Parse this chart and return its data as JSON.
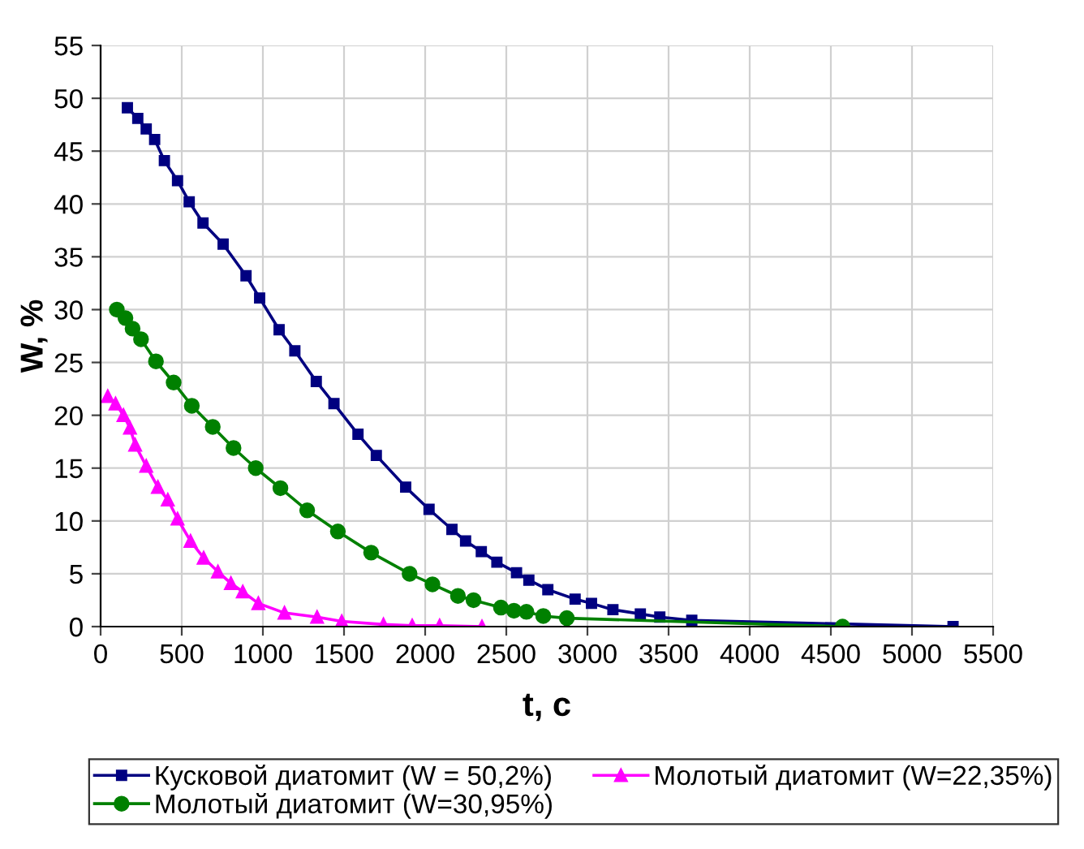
{
  "chart_data": {
    "type": "line",
    "xlabel": "t, c",
    "ylabel": "W, %",
    "xlim": [
      0,
      5500
    ],
    "ylim": [
      0,
      55
    ],
    "xticks": [
      0,
      500,
      1000,
      1500,
      2000,
      2500,
      3000,
      3500,
      4000,
      4500,
      5000,
      5500
    ],
    "yticks": [
      0,
      5,
      10,
      15,
      20,
      25,
      30,
      35,
      40,
      45,
      50,
      55
    ],
    "grid": true,
    "legend": "bottom",
    "line_style": "solid",
    "series": [
      {
        "name": "Кусковой диатомит (W = 50,2%)",
        "color": "#000080",
        "marker": "square",
        "x": [
          165,
          229,
          281,
          333,
          393,
          474,
          546,
          631,
          755,
          896,
          980,
          1100,
          1197,
          1329,
          1438,
          1586,
          1699,
          1880,
          2024,
          2165,
          2249,
          2346,
          2442,
          2563,
          2639,
          2756,
          2924,
          3025,
          3157,
          3326,
          3446,
          3643,
          5253
        ],
        "values": [
          49.1,
          48.1,
          47.1,
          46.1,
          44.1,
          42.2,
          40.2,
          38.2,
          36.2,
          33.2,
          31.1,
          28.1,
          26.1,
          23.2,
          21.1,
          18.2,
          16.2,
          13.2,
          11.1,
          9.2,
          8.1,
          7.1,
          6.1,
          5.1,
          4.4,
          3.5,
          2.6,
          2.2,
          1.6,
          1.2,
          0.9,
          0.6,
          0
        ]
      },
      {
        "name": "Молотый диатомит (W=22,35%)",
        "color": "#ff00ff",
        "marker": "triangle",
        "x": [
          44,
          92,
          141,
          181,
          213,
          281,
          353,
          414,
          474,
          554,
          635,
          723,
          803,
          876,
          972,
          1133,
          1334,
          1486,
          1743,
          1920,
          2089,
          2350
        ],
        "values": [
          21.8,
          21.1,
          20.0,
          18.8,
          17.2,
          15.2,
          13.2,
          12.0,
          10.2,
          8.1,
          6.5,
          5.2,
          4.1,
          3.3,
          2.2,
          1.3,
          0.9,
          0.5,
          0.2,
          0.1,
          0.1,
          0
        ]
      },
      {
        "name": "Молотый диатомит (W=30,95%)",
        "color": "#008000",
        "marker": "circle",
        "x": [
          100,
          153,
          197,
          249,
          341,
          450,
          562,
          691,
          819,
          956,
          1108,
          1273,
          1462,
          1667,
          1904,
          2045,
          2202,
          2298,
          2467,
          2547,
          2624,
          2728,
          2873,
          4572
        ],
        "values": [
          30.0,
          29.2,
          28.2,
          27.2,
          25.1,
          23.1,
          20.9,
          18.9,
          16.9,
          15.0,
          13.1,
          11.0,
          9.0,
          7.0,
          5.0,
          4.0,
          2.9,
          2.5,
          1.8,
          1.5,
          1.4,
          1.0,
          0.8,
          0
        ]
      }
    ]
  }
}
